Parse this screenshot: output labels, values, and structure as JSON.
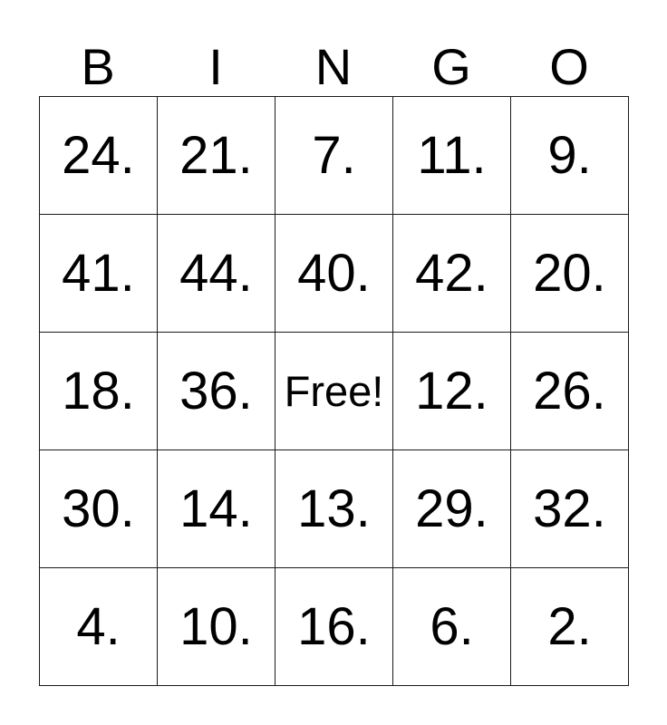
{
  "card": {
    "title": "BINGO",
    "header_letters": [
      "B",
      "I",
      "N",
      "G",
      "O"
    ],
    "rows": [
      [
        "24.",
        "21.",
        "7.",
        "11.",
        "9."
      ],
      [
        "41.",
        "44.",
        "40.",
        "42.",
        "20."
      ],
      [
        "18.",
        "36.",
        "Free!",
        "12.",
        "26."
      ],
      [
        "30.",
        "14.",
        "13.",
        "29.",
        "32."
      ],
      [
        "4.",
        "10.",
        "16.",
        "6.",
        "2."
      ]
    ],
    "free_cell": {
      "row": 2,
      "col": 2,
      "label": "Free!"
    },
    "colors": {
      "background": "#ffffff",
      "border": "#1a1a1a",
      "text": "#000000"
    }
  }
}
